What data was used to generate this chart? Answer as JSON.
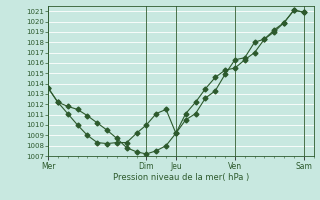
{
  "xlabel": "Pression niveau de la mer( hPa )",
  "ylim": [
    1007,
    1021.5
  ],
  "yticks": [
    1007,
    1008,
    1009,
    1010,
    1011,
    1012,
    1013,
    1014,
    1015,
    1016,
    1017,
    1018,
    1019,
    1020,
    1021
  ],
  "bg_color": "#c8e8e0",
  "grid_color": "#ffffff",
  "line_color": "#2d5a2d",
  "x_day_labels": [
    "Mer",
    "Dim",
    "Jeu",
    "Ven",
    "Sam"
  ],
  "x_day_positions": [
    0,
    10,
    13,
    19,
    26
  ],
  "xlim": [
    0,
    27
  ],
  "line1_x": [
    0,
    1,
    2,
    3,
    4,
    5,
    6,
    7,
    8,
    9,
    10,
    11,
    12,
    13,
    14,
    15,
    16,
    17,
    18,
    19,
    20,
    21,
    22,
    23,
    24,
    25,
    26
  ],
  "line1_y": [
    1013.6,
    1012.2,
    1011.1,
    1010.0,
    1009.0,
    1008.3,
    1008.2,
    1008.3,
    1008.3,
    1009.2,
    1010.0,
    1011.1,
    1011.5,
    1009.2,
    1010.5,
    1011.1,
    1012.6,
    1013.3,
    1014.9,
    1016.3,
    1016.5,
    1018.0,
    1018.3,
    1019.2,
    1019.9,
    1021.1,
    1020.9
  ],
  "line2_x": [
    0,
    1,
    2,
    3,
    4,
    5,
    6,
    7,
    8,
    9,
    10,
    11,
    12,
    13,
    14,
    15,
    16,
    17,
    18,
    19,
    20,
    21,
    22,
    23,
    24,
    25,
    26
  ],
  "line2_y": [
    1013.6,
    1012.2,
    1011.8,
    1011.5,
    1010.9,
    1010.2,
    1009.5,
    1008.7,
    1007.8,
    1007.4,
    1007.2,
    1007.5,
    1008.0,
    1009.2,
    1011.1,
    1012.2,
    1013.5,
    1014.6,
    1015.3,
    1015.5,
    1016.3,
    1017.0,
    1018.3,
    1019.0,
    1019.9,
    1021.1,
    1020.9
  ]
}
